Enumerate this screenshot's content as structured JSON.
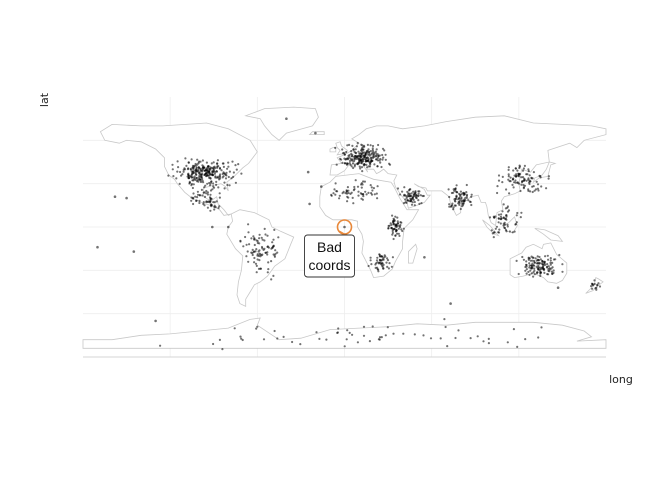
{
  "chart_data": {
    "type": "scatter",
    "title": "",
    "xlabel": "long",
    "ylabel": "lat",
    "xlim": [
      -180,
      180
    ],
    "ylim": [
      -90,
      90
    ],
    "grid": true,
    "legend": "none",
    "colors": {
      "points": "#000000",
      "coastline": "#c8c8c8",
      "gridline": "#eeeeee",
      "highlight_ring": "#e8883a",
      "label_border": "#333333"
    },
    "annotation": {
      "lines": [
        "Bad",
        "coords"
      ],
      "target": [
        0,
        0
      ]
    },
    "point_clusters": [
      {
        "region": "North America",
        "lon": [
          -125,
          -68
        ],
        "lat": [
          25,
          50
        ],
        "n": 260
      },
      {
        "region": "Mexico / Central America",
        "lon": [
          -110,
          -80
        ],
        "lat": [
          8,
          30
        ],
        "n": 60
      },
      {
        "region": "South America",
        "lon": [
          -75,
          -40
        ],
        "lat": [
          -40,
          5
        ],
        "n": 90
      },
      {
        "region": "Europe",
        "lon": [
          -10,
          35
        ],
        "lat": [
          36,
          60
        ],
        "n": 220
      },
      {
        "region": "North Africa / Sahara",
        "lon": [
          -15,
          30
        ],
        "lat": [
          15,
          35
        ],
        "n": 60
      },
      {
        "region": "East Africa",
        "lon": [
          28,
          42
        ],
        "lat": [
          -10,
          12
        ],
        "n": 60
      },
      {
        "region": "Southern Africa",
        "lon": [
          15,
          35
        ],
        "lat": [
          -34,
          -15
        ],
        "n": 50
      },
      {
        "region": "Arabian Peninsula",
        "lon": [
          35,
          58
        ],
        "lat": [
          12,
          30
        ],
        "n": 70
      },
      {
        "region": "South Asia",
        "lon": [
          68,
          92
        ],
        "lat": [
          8,
          32
        ],
        "n": 80
      },
      {
        "region": "East Asia",
        "lon": [
          100,
          145
        ],
        "lat": [
          20,
          45
        ],
        "n": 100
      },
      {
        "region": "Southeast Asia",
        "lon": [
          95,
          125
        ],
        "lat": [
          -10,
          20
        ],
        "n": 60
      },
      {
        "region": "Australia",
        "lon": [
          115,
          153
        ],
        "lat": [
          -38,
          -15
        ],
        "n": 130
      },
      {
        "region": "New Zealand",
        "lon": [
          166,
          178
        ],
        "lat": [
          -46,
          -36
        ],
        "n": 15
      },
      {
        "region": "Antarctica",
        "lon": [
          -175,
          178
        ],
        "lat": [
          -88,
          -62
        ],
        "n": 60
      }
    ],
    "points": [
      [
        0,
        0
      ],
      [
        -150,
        20
      ],
      [
        -158,
        21
      ],
      [
        -170,
        -14
      ],
      [
        -145,
        -17
      ],
      [
        -25,
        38
      ],
      [
        -24,
        16
      ],
      [
        -16,
        28
      ],
      [
        -80,
        0
      ],
      [
        -91,
        0
      ],
      [
        -130,
        -65
      ],
      [
        73,
        -53
      ],
      [
        -40,
        75
      ],
      [
        -20,
        65
      ],
      [
        55,
        -21
      ],
      [
        147,
        -42
      ]
    ]
  }
}
